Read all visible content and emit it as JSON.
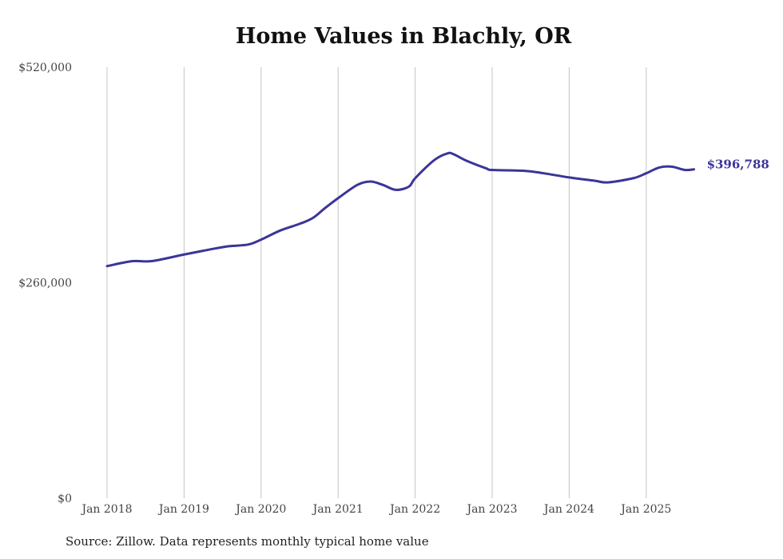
{
  "chart_data": {
    "type": "line",
    "title": "Home Values in Blachly, OR",
    "source": "Source: Zillow. Data represents monthly typical home value",
    "xlabel": "",
    "ylabel": "",
    "ylim": [
      0,
      520000
    ],
    "yticks": [
      0,
      260000,
      520000
    ],
    "ytick_labels": [
      "$0",
      "$260,000",
      "$520,000"
    ],
    "xticks": [
      2018,
      2019,
      2020,
      2021,
      2022,
      2023,
      2024,
      2025
    ],
    "xtick_labels": [
      "Jan 2018",
      "Jan 2019",
      "Jan 2020",
      "Jan 2021",
      "Jan 2022",
      "Jan 2023",
      "Jan 2024",
      "Jan 2025"
    ],
    "grid": "vertical",
    "line_color": "#3b3598",
    "end_label": "$396,788",
    "series": [
      {
        "name": "Typical home value",
        "x": [
          2018.0,
          2018.33,
          2018.58,
          2019.0,
          2019.33,
          2019.58,
          2019.83,
          2020.0,
          2020.25,
          2020.5,
          2020.67,
          2020.83,
          2021.0,
          2021.25,
          2021.42,
          2021.58,
          2021.75,
          2021.92,
          2022.0,
          2022.25,
          2022.42,
          2022.5,
          2022.67,
          2022.92,
          2023.0,
          2023.42,
          2023.67,
          2024.0,
          2024.33,
          2024.5,
          2024.83,
          2025.0,
          2025.17,
          2025.33,
          2025.5,
          2025.62
        ],
        "values": [
          280000,
          286000,
          286000,
          294000,
          300000,
          304000,
          306000,
          312000,
          323000,
          331000,
          338000,
          350000,
          362000,
          378000,
          382000,
          378000,
          372000,
          376000,
          386000,
          408000,
          416000,
          415000,
          407000,
          398000,
          396000,
          395000,
          392000,
          387000,
          383000,
          381000,
          386000,
          392000,
          399000,
          400000,
          396000,
          396788
        ]
      }
    ]
  }
}
